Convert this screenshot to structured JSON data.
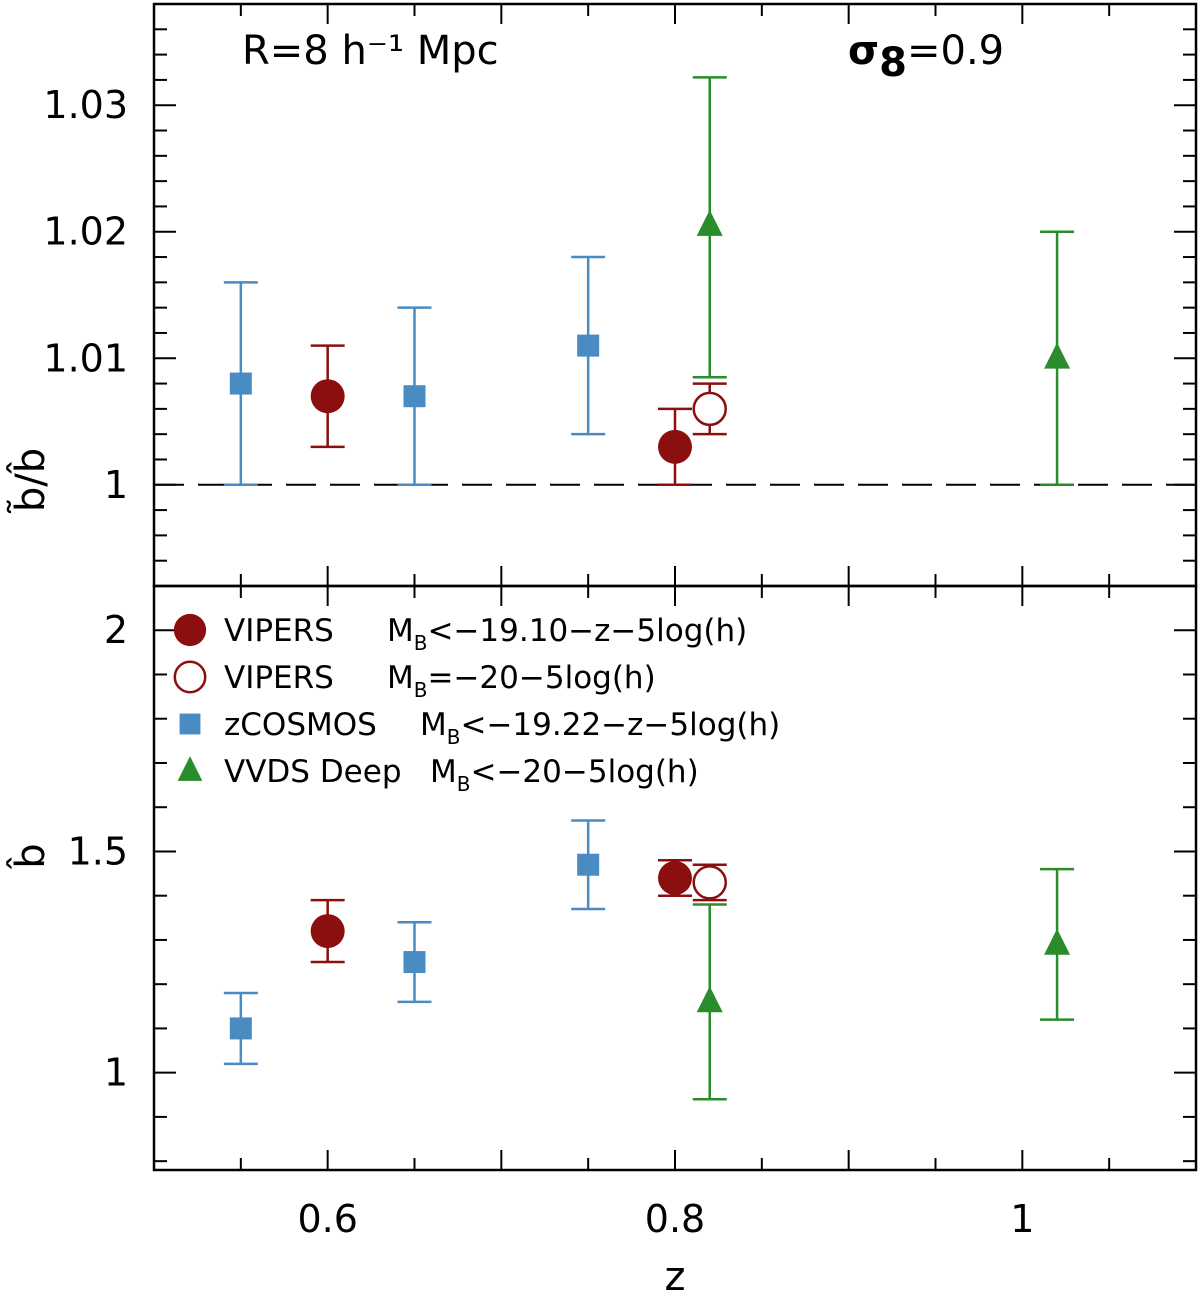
{
  "chart_data": [
    {
      "type": "scatter",
      "panel": "top",
      "ylabel": "b̃/b̂",
      "xlim": [
        0.5,
        1.1
      ],
      "ylim": [
        0.992,
        1.038
      ],
      "yticks": [
        1,
        1.01,
        1.02,
        1.03
      ],
      "ytick_labels": [
        "1",
        "1.01",
        "1.02",
        "1.03"
      ],
      "reference_line": {
        "y": 1,
        "style": "dashed"
      },
      "annotations": {
        "left": "R=8 h⁻¹ Mpc",
        "right_symbol": "σ",
        "right_sub": "8",
        "right_value": "=0.9"
      },
      "series": [
        {
          "key": "vipers_filled",
          "color": "#8b0f0f",
          "marker": "circle-filled",
          "points": [
            {
              "x": 0.6,
              "y": 1.007,
              "lo": 1.003,
              "hi": 1.011
            },
            {
              "x": 0.8,
              "y": 1.003,
              "lo": 1.0,
              "hi": 1.006
            }
          ]
        },
        {
          "key": "vipers_open",
          "color": "#8b0f0f",
          "marker": "circle-open",
          "points": [
            {
              "x": 0.82,
              "y": 1.006,
              "lo": 1.004,
              "hi": 1.008
            }
          ]
        },
        {
          "key": "zcosmos",
          "color": "#4a8bc2",
          "marker": "square",
          "points": [
            {
              "x": 0.55,
              "y": 1.008,
              "lo": 1.0,
              "hi": 1.016
            },
            {
              "x": 0.65,
              "y": 1.007,
              "lo": 1.0,
              "hi": 1.014
            },
            {
              "x": 0.75,
              "y": 1.011,
              "lo": 1.004,
              "hi": 1.018
            }
          ]
        },
        {
          "key": "vvds",
          "color": "#2a8c2a",
          "marker": "triangle",
          "points": [
            {
              "x": 0.82,
              "y": 1.0205,
              "lo": 1.0085,
              "hi": 1.0322
            },
            {
              "x": 1.02,
              "y": 1.01,
              "lo": 1.0,
              "hi": 1.02
            }
          ]
        }
      ]
    },
    {
      "type": "scatter",
      "panel": "bottom",
      "xlabel": "z",
      "ylabel": "b̂",
      "xlim": [
        0.5,
        1.1
      ],
      "ylim": [
        0.78,
        2.1
      ],
      "xticks": [
        0.6,
        0.8,
        1.0
      ],
      "xtick_labels": [
        "0.6",
        "0.8",
        "1"
      ],
      "yticks": [
        1,
        1.5,
        2
      ],
      "ytick_labels": [
        "1",
        "1.5",
        "2"
      ],
      "series": [
        {
          "key": "vipers_filled",
          "color": "#8b0f0f",
          "marker": "circle-filled",
          "points": [
            {
              "x": 0.6,
              "y": 1.32,
              "lo": 1.25,
              "hi": 1.39
            },
            {
              "x": 0.8,
              "y": 1.44,
              "lo": 1.4,
              "hi": 1.48
            }
          ]
        },
        {
          "key": "vipers_open",
          "color": "#8b0f0f",
          "marker": "circle-open",
          "points": [
            {
              "x": 0.82,
              "y": 1.43,
              "lo": 1.39,
              "hi": 1.47
            }
          ]
        },
        {
          "key": "zcosmos",
          "color": "#4a8bc2",
          "marker": "square",
          "points": [
            {
              "x": 0.55,
              "y": 1.1,
              "lo": 1.02,
              "hi": 1.18
            },
            {
              "x": 0.65,
              "y": 1.25,
              "lo": 1.16,
              "hi": 1.34
            },
            {
              "x": 0.75,
              "y": 1.47,
              "lo": 1.37,
              "hi": 1.57
            }
          ]
        },
        {
          "key": "vvds",
          "color": "#2a8c2a",
          "marker": "triangle",
          "points": [
            {
              "x": 0.82,
              "y": 1.16,
              "lo": 0.94,
              "hi": 1.38
            },
            {
              "x": 1.02,
              "y": 1.29,
              "lo": 1.12,
              "hi": 1.46
            }
          ]
        }
      ],
      "legend": {
        "placement": "top-left",
        "entries": [
          {
            "marker": "circle-filled",
            "color": "#8b0f0f",
            "survey": "VIPERS",
            "mag": "M",
            "sub": "B",
            "cut": "<−19.10−z−5log(h)"
          },
          {
            "marker": "circle-open",
            "color": "#8b0f0f",
            "survey": "VIPERS",
            "mag": "M",
            "sub": "B",
            "cut": "=−20−5log(h)"
          },
          {
            "marker": "square",
            "color": "#4a8bc2",
            "survey": "zCOSMOS",
            "mag": "M",
            "sub": "B",
            "cut": "<−19.22−z−5log(h)"
          },
          {
            "marker": "triangle",
            "color": "#2a8c2a",
            "survey": "VVDS Deep",
            "mag": "M",
            "sub": "B",
            "cut": "<−20−5log(h)"
          }
        ]
      }
    }
  ]
}
